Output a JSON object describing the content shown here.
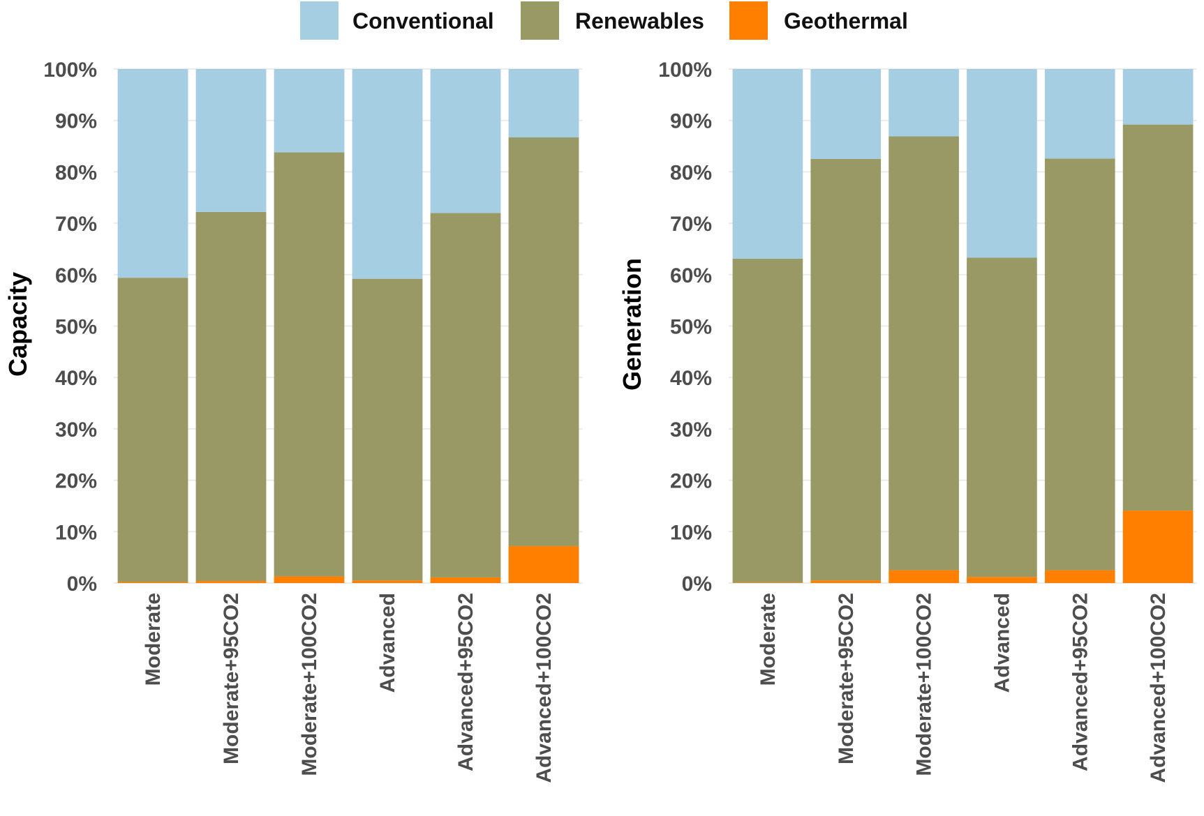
{
  "legend": {
    "entries": [
      {
        "name": "Conventional",
        "color": "#a6cee3"
      },
      {
        "name": "Renewables",
        "color": "#999966"
      },
      {
        "name": "Geothermal",
        "color": "#ff7f00"
      }
    ]
  },
  "chart_data": [
    {
      "type": "bar",
      "stacked": true,
      "ylabel": "Capacity",
      "xlabel": "",
      "ylim": [
        0,
        100
      ],
      "yticks": [
        "0%",
        "10%",
        "20%",
        "30%",
        "40%",
        "50%",
        "60%",
        "70%",
        "80%",
        "90%",
        "100%"
      ],
      "categories": [
        "Moderate",
        "Moderate+95CO2",
        "Moderate+100CO2",
        "Advanced",
        "Advanced+95CO2",
        "Advanced+100CO2"
      ],
      "series": [
        {
          "name": "Geothermal",
          "values": [
            0.2,
            0.4,
            1.3,
            0.5,
            1.1,
            7.2
          ]
        },
        {
          "name": "Renewables",
          "values": [
            59.2,
            71.8,
            82.5,
            58.7,
            70.9,
            79.5
          ]
        },
        {
          "name": "Conventional",
          "values": [
            40.6,
            27.8,
            16.2,
            40.8,
            28.0,
            13.3
          ]
        }
      ]
    },
    {
      "type": "bar",
      "stacked": true,
      "ylabel": "Generation",
      "xlabel": "",
      "ylim": [
        0,
        100
      ],
      "yticks": [
        "0%",
        "10%",
        "20%",
        "30%",
        "40%",
        "50%",
        "60%",
        "70%",
        "80%",
        "90%",
        "100%"
      ],
      "categories": [
        "Moderate",
        "Moderate+95CO2",
        "Moderate+100CO2",
        "Advanced",
        "Advanced+95CO2",
        "Advanced+100CO2"
      ],
      "series": [
        {
          "name": "Geothermal",
          "values": [
            0.1,
            0.5,
            2.5,
            1.2,
            2.5,
            14.1
          ]
        },
        {
          "name": "Renewables",
          "values": [
            63.0,
            82.0,
            84.4,
            62.1,
            80.1,
            75.1
          ]
        },
        {
          "name": "Conventional",
          "values": [
            36.9,
            17.5,
            13.1,
            36.7,
            17.4,
            10.8
          ]
        }
      ]
    }
  ]
}
